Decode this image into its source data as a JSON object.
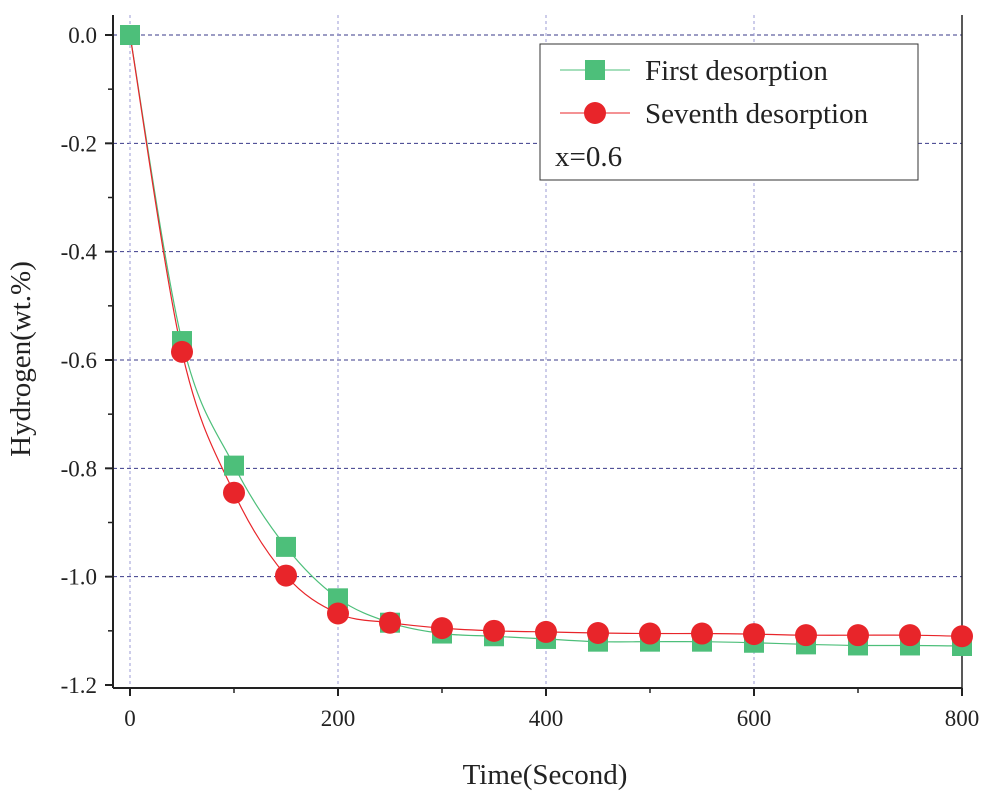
{
  "chart_data": {
    "type": "line",
    "title": "",
    "xlabel": "Time(Second)",
    "ylabel": "Hydrogen(wt.%)",
    "xlim": [
      -10,
      800
    ],
    "ylim": [
      -1.2,
      0.02
    ],
    "xticks": [
      0,
      200,
      400,
      600,
      800
    ],
    "yticks": [
      0.0,
      -0.2,
      -0.4,
      -0.6,
      -0.8,
      -1.0,
      -1.2
    ],
    "xtick_labels": [
      "0",
      "200",
      "400",
      "600",
      "800"
    ],
    "ytick_labels": [
      "0.0",
      "-0.2",
      "-0.4",
      "-0.6",
      "-0.8",
      "-1.0",
      "-1.2"
    ],
    "grid": true,
    "legend_position": "top-right",
    "annotation": "x=0.6",
    "series": [
      {
        "name": "First desorption",
        "marker": "square",
        "color": "#4dbf7a",
        "x": [
          0,
          50,
          100,
          150,
          200,
          250,
          300,
          350,
          400,
          450,
          500,
          550,
          600,
          650,
          700,
          750,
          800
        ],
        "y": [
          0.0,
          -0.565,
          -0.795,
          -0.945,
          -1.04,
          -1.085,
          -1.105,
          -1.11,
          -1.115,
          -1.12,
          -1.12,
          -1.12,
          -1.122,
          -1.125,
          -1.127,
          -1.127,
          -1.128
        ]
      },
      {
        "name": "Seventh desorption",
        "marker": "circle",
        "color": "#e8252a",
        "x": [
          50,
          100,
          150,
          200,
          250,
          300,
          350,
          400,
          450,
          500,
          550,
          600,
          650,
          700,
          750,
          800
        ],
        "y": [
          -0.585,
          -0.845,
          -0.998,
          -1.068,
          -1.085,
          -1.095,
          -1.1,
          -1.102,
          -1.104,
          -1.105,
          -1.105,
          -1.106,
          -1.108,
          -1.108,
          -1.108,
          -1.11
        ]
      }
    ]
  }
}
